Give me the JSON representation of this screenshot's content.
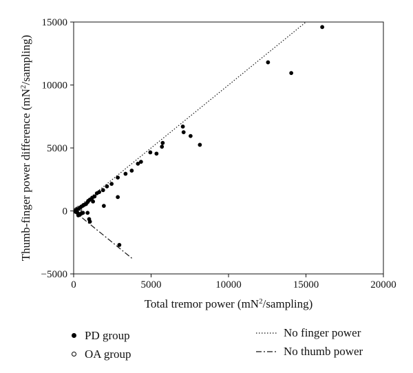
{
  "chart_data": {
    "type": "scatter",
    "title": "",
    "xlabel": "Total tremor power (mN",
    "xlabel_sup": "2",
    "xlabel_suffix": "/sampling)",
    "ylabel": "Thumb-finger power difference (mN",
    "ylabel_sup": "2",
    "ylabel_suffix": "/sampling)",
    "xlim": [
      0,
      20000
    ],
    "ylim": [
      -5000,
      15000
    ],
    "x_ticks": [
      0,
      5000,
      10000,
      15000,
      20000
    ],
    "y_ticks": [
      -5000,
      0,
      5000,
      10000,
      15000
    ],
    "x_tick_labels": [
      "0",
      "5000",
      "10000",
      "15000",
      "20000"
    ],
    "y_tick_labels": [
      "−5000",
      "0",
      "5000",
      "10000",
      "15000"
    ],
    "grid": false,
    "legend_position": "below",
    "series": [
      {
        "name": "PD group",
        "marker": "filled-circle",
        "color": "#000000",
        "points": [
          [
            16050,
            14600
          ],
          [
            12550,
            11800
          ],
          [
            14050,
            10950
          ],
          [
            8150,
            5250
          ],
          [
            7550,
            5950
          ],
          [
            7050,
            6700
          ],
          [
            7100,
            6250
          ],
          [
            5750,
            5400
          ],
          [
            5700,
            5100
          ],
          [
            5350,
            4550
          ],
          [
            4950,
            4650
          ],
          [
            4350,
            3900
          ],
          [
            4150,
            3750
          ],
          [
            3750,
            3200
          ],
          [
            3350,
            2950
          ],
          [
            2850,
            2650
          ],
          [
            2850,
            1100
          ],
          [
            2450,
            2150
          ],
          [
            2150,
            1950
          ],
          [
            1900,
            1650
          ],
          [
            1950,
            400
          ],
          [
            1650,
            1500
          ],
          [
            1500,
            1400
          ],
          [
            1350,
            1150
          ],
          [
            1200,
            1050
          ],
          [
            1250,
            750
          ],
          [
            1050,
            900
          ],
          [
            950,
            800
          ],
          [
            900,
            700
          ],
          [
            800,
            550
          ],
          [
            700,
            500
          ],
          [
            600,
            420
          ],
          [
            500,
            350
          ],
          [
            400,
            250
          ],
          [
            300,
            150
          ],
          [
            200,
            100
          ],
          [
            150,
            0
          ],
          [
            100,
            -50
          ],
          [
            250,
            -150
          ],
          [
            350,
            -250
          ],
          [
            400,
            -300
          ],
          [
            500,
            -200
          ],
          [
            600,
            -150
          ],
          [
            300,
            -350
          ],
          [
            900,
            -150
          ],
          [
            1000,
            -650
          ],
          [
            1050,
            -850
          ],
          [
            2950,
            -2700
          ]
        ]
      },
      {
        "name": "OA group",
        "marker": "open-circle",
        "color": "#000000",
        "points": [
          [
            120,
            60
          ],
          [
            180,
            -20
          ],
          [
            220,
            80
          ],
          [
            280,
            -80
          ],
          [
            160,
            130
          ],
          [
            340,
            40
          ],
          [
            260,
            180
          ],
          [
            200,
            -120
          ],
          [
            420,
            90
          ],
          [
            380,
            -60
          ],
          [
            140,
            -60
          ],
          [
            300,
            240
          ]
        ]
      }
    ],
    "reference_lines": [
      {
        "name": "No finger power",
        "style": "dotted",
        "x": [
          0,
          15000
        ],
        "y": [
          0,
          15000
        ]
      },
      {
        "name": "No thumb power",
        "style": "dash-dot",
        "x": [
          0,
          3800
        ],
        "y": [
          0,
          -3800
        ]
      }
    ]
  }
}
